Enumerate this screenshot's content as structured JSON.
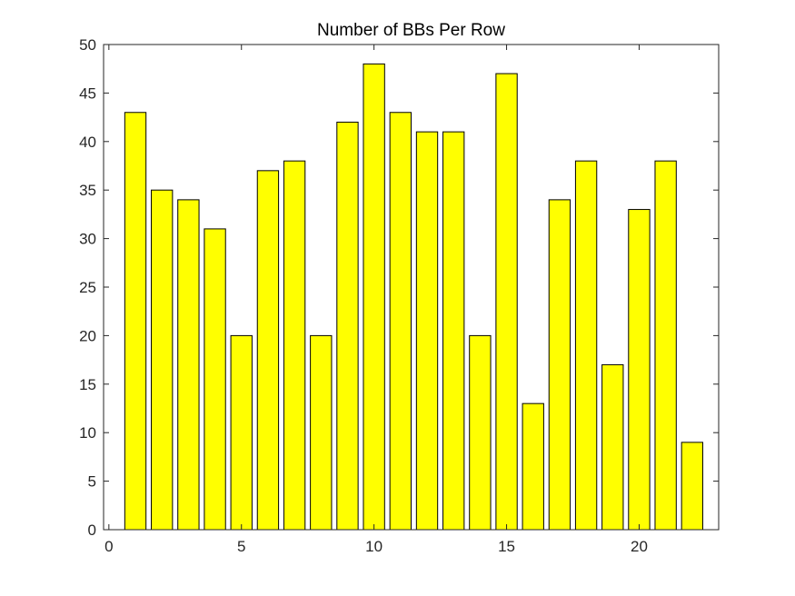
{
  "chart_data": {
    "type": "bar",
    "title": "Number of BBs Per Row",
    "xlabel": "",
    "ylabel": "",
    "x": [
      1,
      2,
      3,
      4,
      5,
      6,
      7,
      8,
      9,
      10,
      11,
      12,
      13,
      14,
      15,
      16,
      17,
      18,
      19,
      20,
      21,
      22
    ],
    "values": [
      43,
      35,
      34,
      31,
      20,
      37,
      38,
      20,
      42,
      48,
      43,
      41,
      41,
      20,
      47,
      13,
      34,
      38,
      17,
      33,
      38,
      9
    ],
    "xlim": [
      -0.2,
      23.0
    ],
    "ylim": [
      0,
      50
    ],
    "xticks": [
      0,
      5,
      10,
      15,
      20
    ],
    "yticks": [
      0,
      5,
      10,
      15,
      20,
      25,
      30,
      35,
      40,
      45,
      50
    ],
    "xtick_labels": [
      "0",
      "5",
      "10",
      "15",
      "20"
    ],
    "ytick_labels": [
      "0",
      "5",
      "10",
      "15",
      "20",
      "25",
      "30",
      "35",
      "40",
      "45",
      "50"
    ],
    "bar_width": 0.8,
    "grid": false,
    "legend": "none",
    "colors": {
      "bar_fill": "#ffff00",
      "bar_edge": "#000000",
      "axis": "#262626"
    }
  }
}
